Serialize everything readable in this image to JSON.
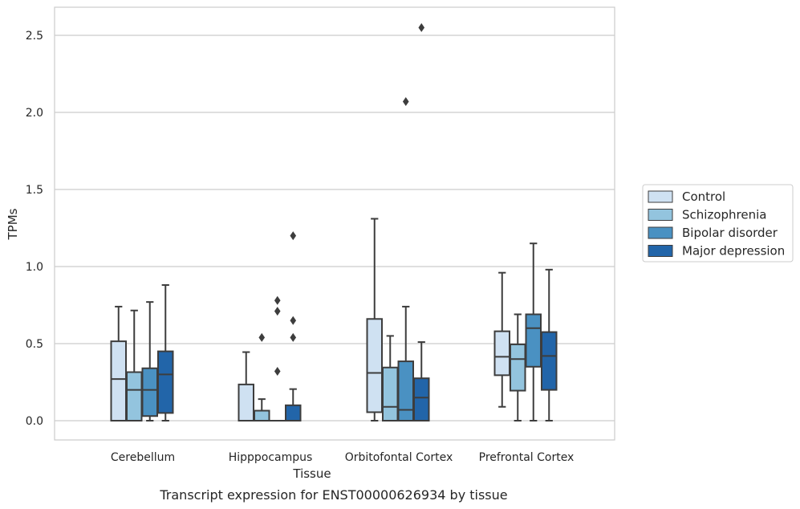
{
  "chart_data": {
    "type": "boxplot",
    "caption": "Transcript expression for ENST00000626934 by tissue",
    "xlabel": "Tissue",
    "ylabel": "TPMs",
    "ylim": [
      -0.12,
      2.68
    ],
    "yticks": [
      "0.0",
      "0.5",
      "1.0",
      "1.5",
      "2.0",
      "2.5"
    ],
    "grid": "horizontal",
    "legend_position": "right",
    "categories": [
      "Cerebellum",
      "Hipppocampus",
      "Orbitofontal Cortex",
      "Prefrontal Cortex"
    ],
    "series": [
      {
        "name": "Control",
        "color": "#cfe1f2",
        "boxes": [
          {
            "whislo": 0.0,
            "q1": 0.0,
            "med": 0.27,
            "q3": 0.515,
            "whishi": 0.74,
            "fliers": []
          },
          {
            "whislo": 0.0,
            "q1": 0.0,
            "med": 0.0,
            "q3": 0.235,
            "whishi": 0.445,
            "fliers": []
          },
          {
            "whislo": 0.0,
            "q1": 0.055,
            "med": 0.31,
            "q3": 0.66,
            "whishi": 1.31,
            "fliers": []
          },
          {
            "whislo": 0.09,
            "q1": 0.295,
            "med": 0.415,
            "q3": 0.58,
            "whishi": 0.96,
            "fliers": []
          }
        ]
      },
      {
        "name": "Schizophrenia",
        "color": "#93c4de",
        "boxes": [
          {
            "whislo": 0.0,
            "q1": 0.0,
            "med": 0.2,
            "q3": 0.315,
            "whishi": 0.715,
            "fliers": []
          },
          {
            "whislo": 0.0,
            "q1": 0.0,
            "med": 0.0,
            "q3": 0.065,
            "whishi": 0.14,
            "fliers": [
              0.54
            ]
          },
          {
            "whislo": 0.0,
            "q1": 0.0,
            "med": 0.09,
            "q3": 0.345,
            "whishi": 0.55,
            "fliers": []
          },
          {
            "whislo": 0.0,
            "q1": 0.195,
            "med": 0.4,
            "q3": 0.495,
            "whishi": 0.69,
            "fliers": []
          }
        ]
      },
      {
        "name": "Bipolar disorder",
        "color": "#4a91c2",
        "boxes": [
          {
            "whislo": 0.0,
            "q1": 0.03,
            "med": 0.2,
            "q3": 0.34,
            "whishi": 0.77,
            "fliers": []
          },
          {
            "whislo": 0.0,
            "q1": 0.0,
            "med": 0.0,
            "q3": 0.0,
            "whishi": 0.0,
            "fliers": [
              0.32,
              0.71,
              0.78
            ]
          },
          {
            "whislo": 0.0,
            "q1": 0.0,
            "med": 0.07,
            "q3": 0.385,
            "whishi": 0.74,
            "fliers": [
              2.07
            ]
          },
          {
            "whislo": 0.0,
            "q1": 0.35,
            "med": 0.6,
            "q3": 0.69,
            "whishi": 1.15,
            "fliers": []
          }
        ]
      },
      {
        "name": "Major depression",
        "color": "#2265a9",
        "boxes": [
          {
            "whislo": 0.0,
            "q1": 0.05,
            "med": 0.3,
            "q3": 0.45,
            "whishi": 0.88,
            "fliers": []
          },
          {
            "whislo": 0.0,
            "q1": 0.0,
            "med": 0.0,
            "q3": 0.1,
            "whishi": 0.205,
            "fliers": [
              0.54,
              0.65,
              1.2
            ]
          },
          {
            "whislo": 0.0,
            "q1": 0.0,
            "med": 0.15,
            "q3": 0.275,
            "whishi": 0.51,
            "fliers": [
              2.55
            ]
          },
          {
            "whislo": 0.0,
            "q1": 0.2,
            "med": 0.42,
            "q3": 0.575,
            "whishi": 0.98,
            "fliers": []
          }
        ]
      }
    ]
  }
}
